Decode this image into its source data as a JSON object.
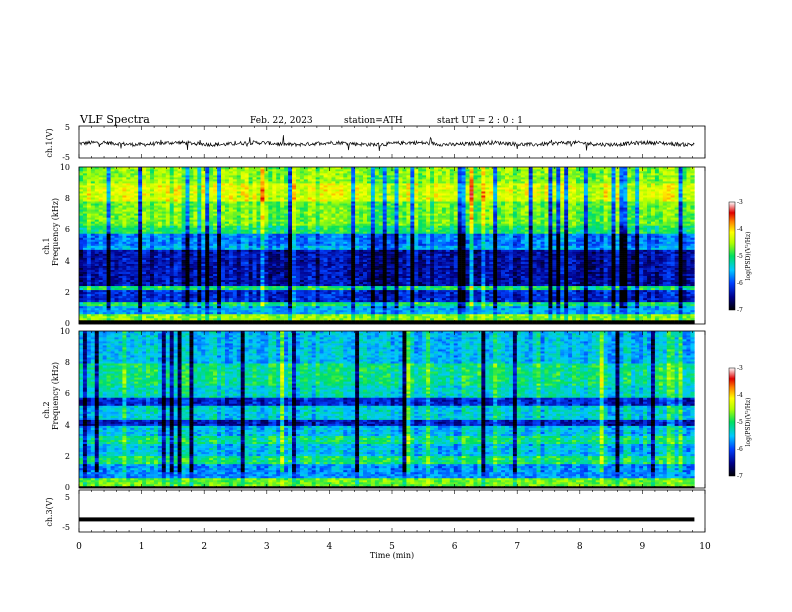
{
  "header": {
    "title": "VLF Spectra",
    "date": "Feb. 22, 2023",
    "station": "station=ATH",
    "start": "start UT =  2 : 0 : 1"
  },
  "chart_data": [
    {
      "type": "line",
      "panel": "ch1-waveform",
      "ylabel": "ch.1(V)",
      "ylim": [
        -5,
        5
      ],
      "yticks": [
        "5",
        "-5"
      ],
      "baseline": -0.5,
      "xlim": [
        0,
        10
      ],
      "x_end": 9.83
    },
    {
      "type": "heatmap",
      "panel": "ch1-spectrogram",
      "ylabel": "Frequency (kHz)",
      "channel_label": "ch.1",
      "ylim": [
        0,
        10
      ],
      "yticks": [
        "0",
        "2",
        "4",
        "6",
        "8",
        "10"
      ],
      "xlim": [
        0,
        10
      ],
      "x_end": 9.83,
      "colorbar": {
        "label": "log(PSD)(V²/Hz)",
        "range": [
          -7,
          -3
        ],
        "ticks": [
          "-3",
          "-4",
          "-5",
          "-6",
          "-7"
        ]
      }
    },
    {
      "type": "heatmap",
      "panel": "ch2-spectrogram",
      "ylabel": "Frequency (kHz)",
      "channel_label": "ch.2",
      "ylim": [
        0,
        10
      ],
      "yticks": [
        "0",
        "2",
        "4",
        "6",
        "8",
        "10"
      ],
      "xlim": [
        0,
        10
      ],
      "x_end": 9.83,
      "colorbar": {
        "label": "log(PSD)(V²/Hz)",
        "range": [
          -7,
          -3
        ],
        "ticks": [
          "-3",
          "-4",
          "-5",
          "-6",
          "-7"
        ]
      }
    },
    {
      "type": "line",
      "panel": "ch3-waveform",
      "ylabel": "ch.3(V)",
      "ylim": [
        -5,
        5
      ],
      "yticks": [
        "5",
        "-5"
      ],
      "baseline": -2.0,
      "xlim": [
        0,
        10
      ],
      "x_end": 9.83,
      "xlabel": "Time (min)",
      "xticks": [
        "0",
        "1",
        "2",
        "3",
        "4",
        "5",
        "6",
        "7",
        "8",
        "9",
        "10"
      ]
    }
  ]
}
